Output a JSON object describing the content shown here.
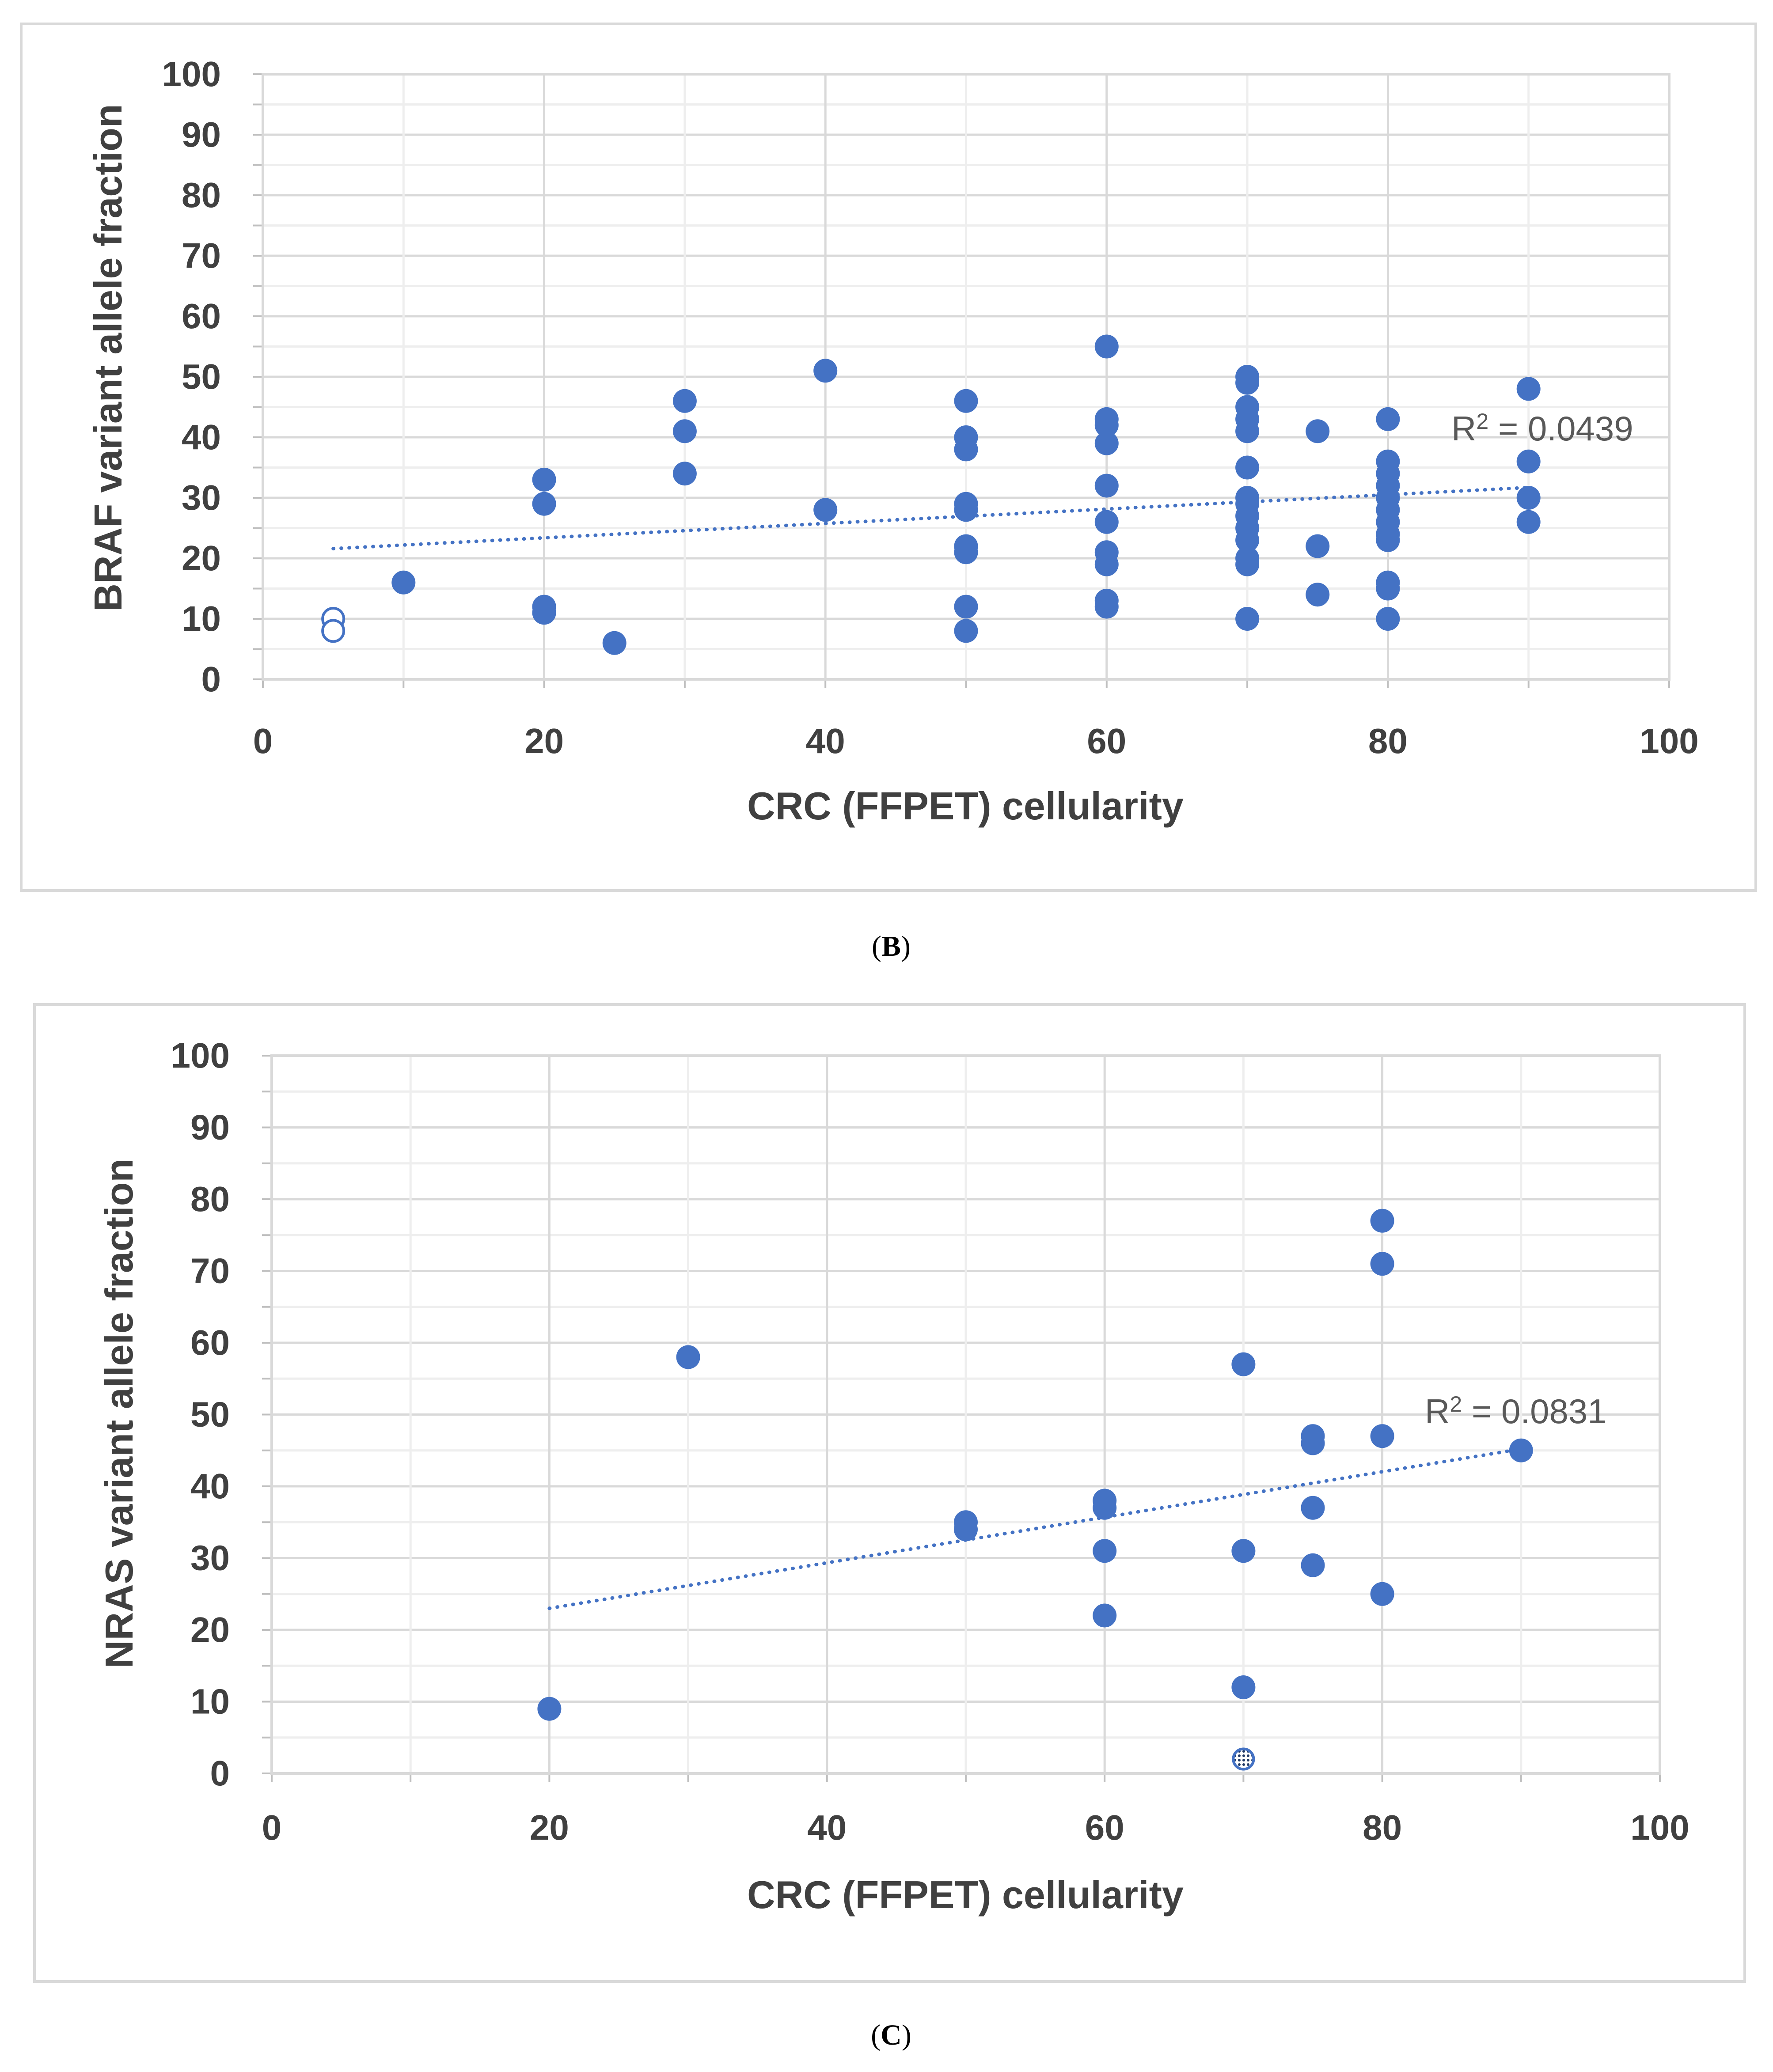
{
  "chart_data": [
    {
      "type": "scatter",
      "panel": "B",
      "xlabel": "CRC (FFPET) cellularity",
      "ylabel": "BRAF variant allele fraction",
      "xlim": [
        0,
        100
      ],
      "ylim": [
        0,
        100
      ],
      "x_ticks": [
        "0",
        "20",
        "40",
        "60",
        "80",
        "100"
      ],
      "y_ticks": [
        "0",
        "10",
        "20",
        "30",
        "40",
        "50",
        "60",
        "70",
        "80",
        "90",
        "100"
      ],
      "grid": true,
      "marker_color": "#4472C4",
      "points": [
        [
          10,
          16
        ],
        [
          20,
          33
        ],
        [
          20,
          29
        ],
        [
          20,
          12
        ],
        [
          20,
          11
        ],
        [
          25,
          6
        ],
        [
          30,
          46
        ],
        [
          30,
          41
        ],
        [
          30,
          34
        ],
        [
          40,
          51
        ],
        [
          40,
          28
        ],
        [
          50,
          46
        ],
        [
          50,
          40
        ],
        [
          50,
          38
        ],
        [
          50,
          29
        ],
        [
          50,
          28
        ],
        [
          50,
          22
        ],
        [
          50,
          21
        ],
        [
          50,
          12
        ],
        [
          50,
          8
        ],
        [
          60,
          55
        ],
        [
          60,
          43
        ],
        [
          60,
          42
        ],
        [
          60,
          39
        ],
        [
          60,
          32
        ],
        [
          60,
          26
        ],
        [
          60,
          21
        ],
        [
          60,
          19
        ],
        [
          60,
          13
        ],
        [
          60,
          12
        ],
        [
          70,
          50
        ],
        [
          70,
          49
        ],
        [
          70,
          45
        ],
        [
          70,
          43
        ],
        [
          70,
          41
        ],
        [
          70,
          35
        ],
        [
          70,
          30
        ],
        [
          70,
          29
        ],
        [
          70,
          27
        ],
        [
          70,
          25
        ],
        [
          70,
          23
        ],
        [
          70,
          20
        ],
        [
          70,
          19
        ],
        [
          70,
          10
        ],
        [
          75,
          41
        ],
        [
          75,
          22
        ],
        [
          75,
          14
        ],
        [
          80,
          43
        ],
        [
          80,
          36
        ],
        [
          80,
          34
        ],
        [
          80,
          32
        ],
        [
          80,
          30
        ],
        [
          80,
          28
        ],
        [
          80,
          26
        ],
        [
          80,
          24
        ],
        [
          80,
          23
        ],
        [
          80,
          16
        ],
        [
          80,
          15
        ],
        [
          80,
          10
        ],
        [
          90,
          48
        ],
        [
          90,
          36
        ],
        [
          90,
          30
        ],
        [
          90,
          26
        ]
      ],
      "hollow_points": [
        [
          5,
          10
        ],
        [
          5,
          8
        ]
      ],
      "trendline": {
        "style": "dotted linear",
        "x": [
          5,
          90
        ],
        "y": [
          21.6,
          31.7
        ]
      },
      "annotation": {
        "label": "R",
        "sup": "2",
        "rest": " = 0.0439"
      },
      "caption": "B"
    },
    {
      "type": "scatter",
      "panel": "C",
      "xlabel": "CRC (FFPET) cellularity",
      "ylabel": "NRAS variant allele fraction",
      "xlim": [
        0,
        100
      ],
      "ylim": [
        0,
        100
      ],
      "x_ticks": [
        "0",
        "20",
        "40",
        "60",
        "80",
        "100"
      ],
      "y_ticks": [
        "0",
        "10",
        "20",
        "30",
        "40",
        "50",
        "60",
        "70",
        "80",
        "90",
        "100"
      ],
      "grid": true,
      "marker_color": "#4472C4",
      "points": [
        [
          20,
          9
        ],
        [
          30,
          58
        ],
        [
          50,
          35
        ],
        [
          50,
          34
        ],
        [
          60,
          38
        ],
        [
          60,
          37
        ],
        [
          60,
          31
        ],
        [
          60,
          22
        ],
        [
          70,
          57
        ],
        [
          70,
          31
        ],
        [
          70,
          12
        ],
        [
          75,
          47
        ],
        [
          75,
          46
        ],
        [
          75,
          37
        ],
        [
          75,
          29
        ],
        [
          80,
          77
        ],
        [
          80,
          71
        ],
        [
          80,
          47
        ],
        [
          80,
          25
        ],
        [
          90,
          45
        ]
      ],
      "hatched_points": [
        [
          70,
          2
        ]
      ],
      "trendline": {
        "style": "dotted linear",
        "x": [
          20,
          90
        ],
        "y": [
          23,
          45.2
        ]
      },
      "annotation": {
        "label": "R",
        "sup": "2",
        "rest": " = 0.0831"
      },
      "caption": "C"
    }
  ]
}
